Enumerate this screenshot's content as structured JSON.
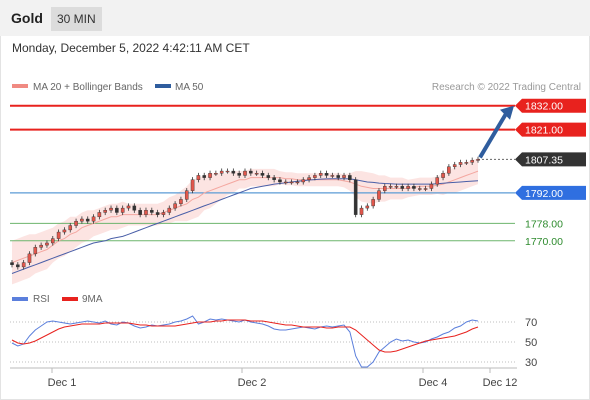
{
  "header": {
    "title": "Gold",
    "timeframe": "30 MIN"
  },
  "timestamp": "Monday, December 5, 2022 4:42:11 AM CET",
  "legend": {
    "bb_label": "MA 20 + Bollinger Bands",
    "ma50_label": "MA 50",
    "copyright": "Research © 2022 Trading Central"
  },
  "rsi_legend": {
    "rsi_label": "RSI",
    "ma_label": "9MA"
  },
  "colors": {
    "resistance": "#e8221e",
    "support": "#5b9bd5",
    "target_support": "#6db56d",
    "current": "#333333",
    "arrow": "#2f5d9e",
    "bollinger": "#f4a7a0",
    "ma50": "#4a5fa8",
    "candle_up": "#e2574c",
    "candle_down": "#333333",
    "rsi": "#5b7fdc",
    "rsi_ma": "#e8221e"
  },
  "chart_data": [
    {
      "type": "candlestick",
      "title": "",
      "x_ticks": [
        "Dec 1",
        "Dec 2",
        "Dec 4",
        "Dec 12"
      ],
      "ylim": [
        1752,
        1836
      ],
      "price_levels": [
        {
          "value": 1832.0,
          "label": "1832.00",
          "kind": "resistance"
        },
        {
          "value": 1821.0,
          "label": "1821.00",
          "kind": "resistance"
        },
        {
          "value": 1807.35,
          "label": "1807.35",
          "kind": "current"
        },
        {
          "value": 1792.0,
          "label": "1792.00",
          "kind": "pivot"
        },
        {
          "value": 1778.0,
          "label": "1778.00",
          "kind": "support"
        },
        {
          "value": 1770.0,
          "label": "1770.00",
          "kind": "support"
        }
      ],
      "close": [
        1759,
        1758,
        1760,
        1764,
        1767,
        1768,
        1769,
        1771,
        1774,
        1775,
        1777,
        1779,
        1780,
        1779,
        1781,
        1783,
        1784,
        1785,
        1783,
        1785,
        1786,
        1784,
        1782,
        1784,
        1783,
        1782,
        1783,
        1785,
        1787,
        1789,
        1793,
        1798,
        1800,
        1799,
        1801,
        1801,
        1802,
        1802,
        1801,
        1800,
        1802,
        1801,
        1801,
        1800,
        1799,
        1798,
        1797,
        1797,
        1797,
        1797,
        1798,
        1799,
        1800,
        1801,
        1800,
        1800,
        1799,
        1800,
        1798,
        1782,
        1785,
        1786,
        1789,
        1793,
        1795,
        1795,
        1795,
        1794,
        1795,
        1794,
        1794,
        1794,
        1796,
        1799,
        1801,
        1804,
        1805,
        1806,
        1806,
        1807,
        1807.35
      ],
      "ma50": [
        1755,
        1756,
        1757,
        1758,
        1759,
        1760,
        1761,
        1762,
        1763,
        1764,
        1765,
        1766,
        1767,
        1768,
        1769,
        1769.5,
        1770,
        1771,
        1771.5,
        1772,
        1773,
        1774,
        1775,
        1776,
        1777,
        1778,
        1779,
        1780,
        1781,
        1782,
        1783,
        1784,
        1785,
        1786,
        1787,
        1788,
        1789,
        1790,
        1791,
        1792,
        1793,
        1794,
        1794.5,
        1795,
        1795.5,
        1796,
        1796.3,
        1796.6,
        1797,
        1797.3,
        1797.6,
        1797.9,
        1798.1,
        1798.3,
        1798.4,
        1798.5,
        1798.5,
        1798.5,
        1798.4,
        1798,
        1797.5,
        1797,
        1796.8,
        1796.5,
        1796.3,
        1796.2,
        1796,
        1796,
        1796,
        1796,
        1796,
        1796,
        1796,
        1796.2,
        1796.4,
        1796.6,
        1796.8,
        1797,
        1797.2,
        1797.4,
        1797.6
      ],
      "ma20": [
        1760,
        1761,
        1762,
        1763,
        1764,
        1765,
        1766,
        1768,
        1770,
        1771,
        1773,
        1774,
        1776,
        1777,
        1778,
        1779,
        1780,
        1781,
        1781,
        1782,
        1782,
        1782,
        1782,
        1782,
        1782,
        1782,
        1783,
        1784,
        1785,
        1786,
        1787,
        1789,
        1790,
        1792,
        1793,
        1794,
        1795,
        1796,
        1797,
        1798,
        1798,
        1799,
        1799,
        1799,
        1799,
        1799,
        1799,
        1798.5,
        1798.5,
        1798,
        1798,
        1798,
        1798,
        1798,
        1798,
        1798,
        1798,
        1797.5,
        1797,
        1796,
        1795,
        1794.5,
        1794,
        1794,
        1794,
        1794,
        1794,
        1794,
        1794,
        1794.5,
        1795,
        1795,
        1795,
        1795.5,
        1796,
        1797,
        1798,
        1799,
        1800,
        1801,
        1802
      ],
      "bb_width": [
        10,
        10,
        10,
        10,
        9,
        9,
        9,
        8,
        8,
        8,
        8,
        7,
        7,
        7,
        6,
        6,
        6,
        6,
        6,
        6,
        5,
        5,
        5,
        5,
        5,
        5,
        5,
        6,
        6,
        7,
        8,
        9,
        9,
        8,
        8,
        7,
        6,
        5,
        5,
        4,
        4,
        4,
        4,
        4,
        4,
        4,
        3,
        3,
        3,
        3,
        3,
        3,
        3,
        3,
        3,
        3,
        3,
        3,
        4,
        6,
        7,
        7,
        7,
        6,
        6,
        5,
        5,
        5,
        4,
        4,
        4,
        4,
        4,
        4,
        5,
        5,
        6,
        6,
        6,
        6,
        6
      ]
    },
    {
      "type": "line",
      "title": "",
      "ylim": [
        20,
        80
      ],
      "y_ticks": [
        70,
        50,
        30
      ],
      "series": [
        {
          "name": "RSI",
          "values": [
            49,
            46,
            48,
            56,
            62,
            66,
            70,
            71,
            70,
            69,
            68,
            69,
            70,
            71,
            70,
            69,
            71,
            68,
            67,
            70,
            69,
            66,
            64,
            65,
            67,
            66,
            67,
            68,
            70,
            71,
            73,
            76,
            68,
            70,
            73,
            72,
            73,
            72,
            71,
            70,
            72,
            70,
            69,
            68,
            66,
            63,
            62,
            62,
            63,
            64,
            65,
            64,
            63,
            65,
            66,
            65,
            66,
            67,
            60,
            36,
            25,
            25,
            30,
            40,
            45,
            50,
            53,
            51,
            52,
            50,
            49,
            50,
            53,
            55,
            58,
            60,
            64,
            66,
            70,
            72,
            71
          ]
        },
        {
          "name": "9MA",
          "values": [
            52,
            49,
            48,
            49,
            51,
            54,
            57,
            60,
            63,
            65,
            66,
            67,
            68,
            68,
            68,
            68,
            69,
            69,
            69,
            69,
            69,
            68,
            67,
            67,
            66,
            66,
            66,
            66,
            66,
            67,
            68,
            69,
            70,
            70,
            70,
            71,
            71,
            72,
            72,
            72,
            72,
            71,
            71,
            71,
            70,
            69,
            68,
            67,
            67,
            66,
            65,
            65,
            65,
            65,
            64,
            64,
            65,
            65,
            65,
            62,
            57,
            52,
            47,
            42,
            40,
            40,
            41,
            43,
            45,
            47,
            49,
            51,
            52,
            53,
            54,
            55,
            56,
            58,
            60,
            63,
            65
          ]
        }
      ]
    }
  ]
}
